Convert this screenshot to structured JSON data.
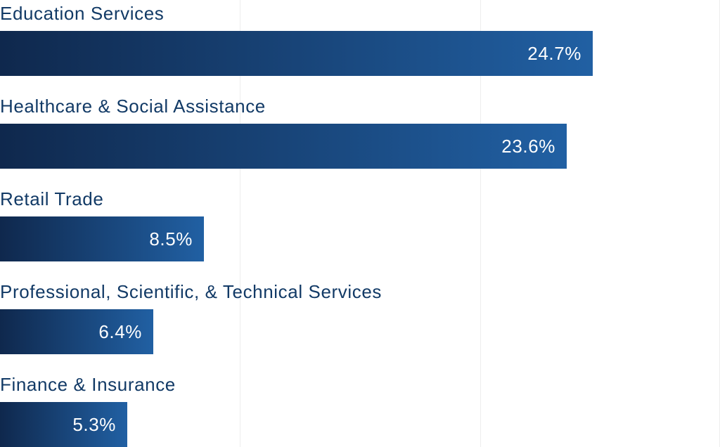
{
  "chart_data": {
    "type": "bar",
    "orientation": "horizontal",
    "title": "",
    "xlabel": "",
    "ylabel": "",
    "categories": [
      "Education Services",
      "Healthcare & Social Assistance",
      "Retail Trade",
      "Professional, Scientific, & Technical Services",
      "Finance & Insurance"
    ],
    "values": [
      24.7,
      23.6,
      8.5,
      6.4,
      5.3
    ],
    "value_labels": [
      "24.7%",
      "23.6%",
      "8.5%",
      "6.4%",
      "5.3%"
    ],
    "xlim": [
      0,
      30
    ],
    "gridlines": [
      10,
      20,
      30
    ],
    "grid": true,
    "legend": "none",
    "colors": {
      "bar_start": "#0f284d",
      "bar_end": "#2160a3",
      "label": "#123a66",
      "value_text": "#ffffff",
      "grid": "#eeeeee"
    }
  }
}
